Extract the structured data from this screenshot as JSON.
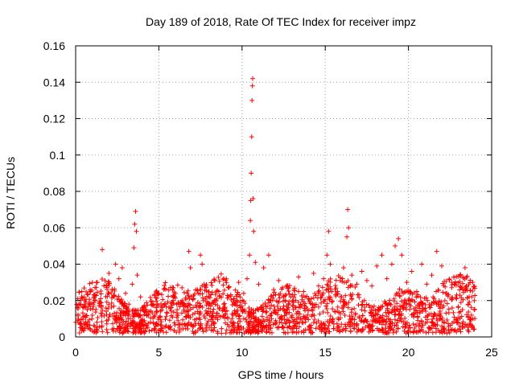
{
  "chart_data": {
    "type": "scatter",
    "title": "Day 189 of 2018, Rate Of TEC Index for receiver impz",
    "xlabel": "GPS time / hours",
    "ylabel": "ROTI / TECUs",
    "xlim": [
      0,
      25
    ],
    "ylim": [
      0,
      0.16
    ],
    "x_ticks": [
      0,
      5,
      10,
      15,
      20,
      25
    ],
    "y_ticks": [
      0,
      0.02,
      0.04,
      0.06,
      0.08,
      0.1,
      0.12,
      0.14,
      0.16
    ],
    "x_tick_labels": [
      "0",
      "5",
      "10",
      "15",
      "20",
      "25"
    ],
    "y_tick_labels": [
      "0",
      "0.02",
      "0.04",
      "0.06",
      "0.08",
      "0.1",
      "0.12",
      "0.14",
      "0.16"
    ],
    "grid": true,
    "marker": "+",
    "marker_color": "#ff0000",
    "series": [
      {
        "name": "ROTI",
        "points": [
          [
            0.1,
            0.012
          ],
          [
            0.3,
            0.018
          ],
          [
            0.5,
            0.022
          ],
          [
            0.7,
            0.015
          ],
          [
            0.9,
            0.025
          ],
          [
            1.1,
            0.019
          ],
          [
            1.3,
            0.03
          ],
          [
            1.5,
            0.021
          ],
          [
            1.7,
            0.028
          ],
          [
            1.6,
            0.048
          ],
          [
            2.0,
            0.035
          ],
          [
            2.2,
            0.026
          ],
          [
            2.4,
            0.04
          ],
          [
            2.6,
            0.032
          ],
          [
            2.8,
            0.038
          ],
          [
            3.0,
            0.024
          ],
          [
            3.2,
            0.018
          ],
          [
            3.4,
            0.029
          ],
          [
            3.5,
            0.049
          ],
          [
            3.55,
            0.062
          ],
          [
            3.6,
            0.069
          ],
          [
            3.65,
            0.058
          ],
          [
            3.7,
            0.034
          ],
          [
            3.9,
            0.022
          ],
          [
            4.1,
            0.015
          ],
          [
            4.3,
            0.012
          ],
          [
            4.6,
            0.018
          ],
          [
            4.9,
            0.014
          ],
          [
            5.2,
            0.016
          ],
          [
            5.5,
            0.013
          ],
          [
            5.8,
            0.019
          ],
          [
            6.1,
            0.015
          ],
          [
            6.4,
            0.02
          ],
          [
            6.7,
            0.024
          ],
          [
            6.8,
            0.047
          ],
          [
            6.9,
            0.038
          ],
          [
            7.1,
            0.021
          ],
          [
            7.3,
            0.026
          ],
          [
            7.5,
            0.045
          ],
          [
            7.6,
            0.04
          ],
          [
            7.8,
            0.028
          ],
          [
            8.0,
            0.022
          ],
          [
            8.3,
            0.019
          ],
          [
            8.6,
            0.025
          ],
          [
            8.9,
            0.018
          ],
          [
            9.2,
            0.027
          ],
          [
            9.5,
            0.021
          ],
          [
            9.8,
            0.03
          ],
          [
            10.1,
            0.024
          ],
          [
            10.3,
            0.032
          ],
          [
            10.45,
            0.045
          ],
          [
            10.5,
            0.064
          ],
          [
            10.52,
            0.075
          ],
          [
            10.55,
            0.09
          ],
          [
            10.58,
            0.11
          ],
          [
            10.6,
            0.13
          ],
          [
            10.62,
            0.138
          ],
          [
            10.64,
            0.142
          ],
          [
            10.66,
            0.076
          ],
          [
            10.7,
            0.058
          ],
          [
            10.8,
            0.041
          ],
          [
            11.0,
            0.029
          ],
          [
            11.3,
            0.038
          ],
          [
            11.6,
            0.045
          ],
          [
            11.9,
            0.026
          ],
          [
            12.2,
            0.031
          ],
          [
            12.5,
            0.022
          ],
          [
            12.8,
            0.027
          ],
          [
            13.1,
            0.019
          ],
          [
            13.4,
            0.033
          ],
          [
            13.7,
            0.025
          ],
          [
            14.0,
            0.021
          ],
          [
            14.3,
            0.035
          ],
          [
            14.6,
            0.028
          ],
          [
            14.9,
            0.032
          ],
          [
            15.1,
            0.045
          ],
          [
            15.2,
            0.058
          ],
          [
            15.3,
            0.04
          ],
          [
            15.6,
            0.026
          ],
          [
            15.9,
            0.031
          ],
          [
            16.1,
            0.038
          ],
          [
            16.3,
            0.055
          ],
          [
            16.35,
            0.07
          ],
          [
            16.4,
            0.06
          ],
          [
            16.6,
            0.034
          ],
          [
            16.9,
            0.029
          ],
          [
            17.2,
            0.036
          ],
          [
            17.5,
            0.031
          ],
          [
            17.8,
            0.028
          ],
          [
            18.1,
            0.039
          ],
          [
            18.4,
            0.045
          ],
          [
            18.7,
            0.032
          ],
          [
            19.0,
            0.04
          ],
          [
            19.2,
            0.05
          ],
          [
            19.4,
            0.054
          ],
          [
            19.6,
            0.045
          ],
          [
            19.9,
            0.03
          ],
          [
            20.2,
            0.036
          ],
          [
            20.5,
            0.025
          ],
          [
            20.8,
            0.04
          ],
          [
            21.1,
            0.029
          ],
          [
            21.4,
            0.034
          ],
          [
            21.7,
            0.047
          ],
          [
            22.0,
            0.039
          ],
          [
            22.3,
            0.024
          ],
          [
            22.6,
            0.03
          ],
          [
            22.9,
            0.021
          ],
          [
            23.2,
            0.027
          ],
          [
            23.4,
            0.038
          ],
          [
            23.6,
            0.018
          ],
          [
            23.8,
            0.022
          ],
          [
            23.95,
            0.015
          ]
        ]
      }
    ],
    "baseline_noise": {
      "x_range": [
        0,
        24
      ],
      "y_range": [
        0.002,
        0.034
      ],
      "approx_count": 1800
    }
  }
}
